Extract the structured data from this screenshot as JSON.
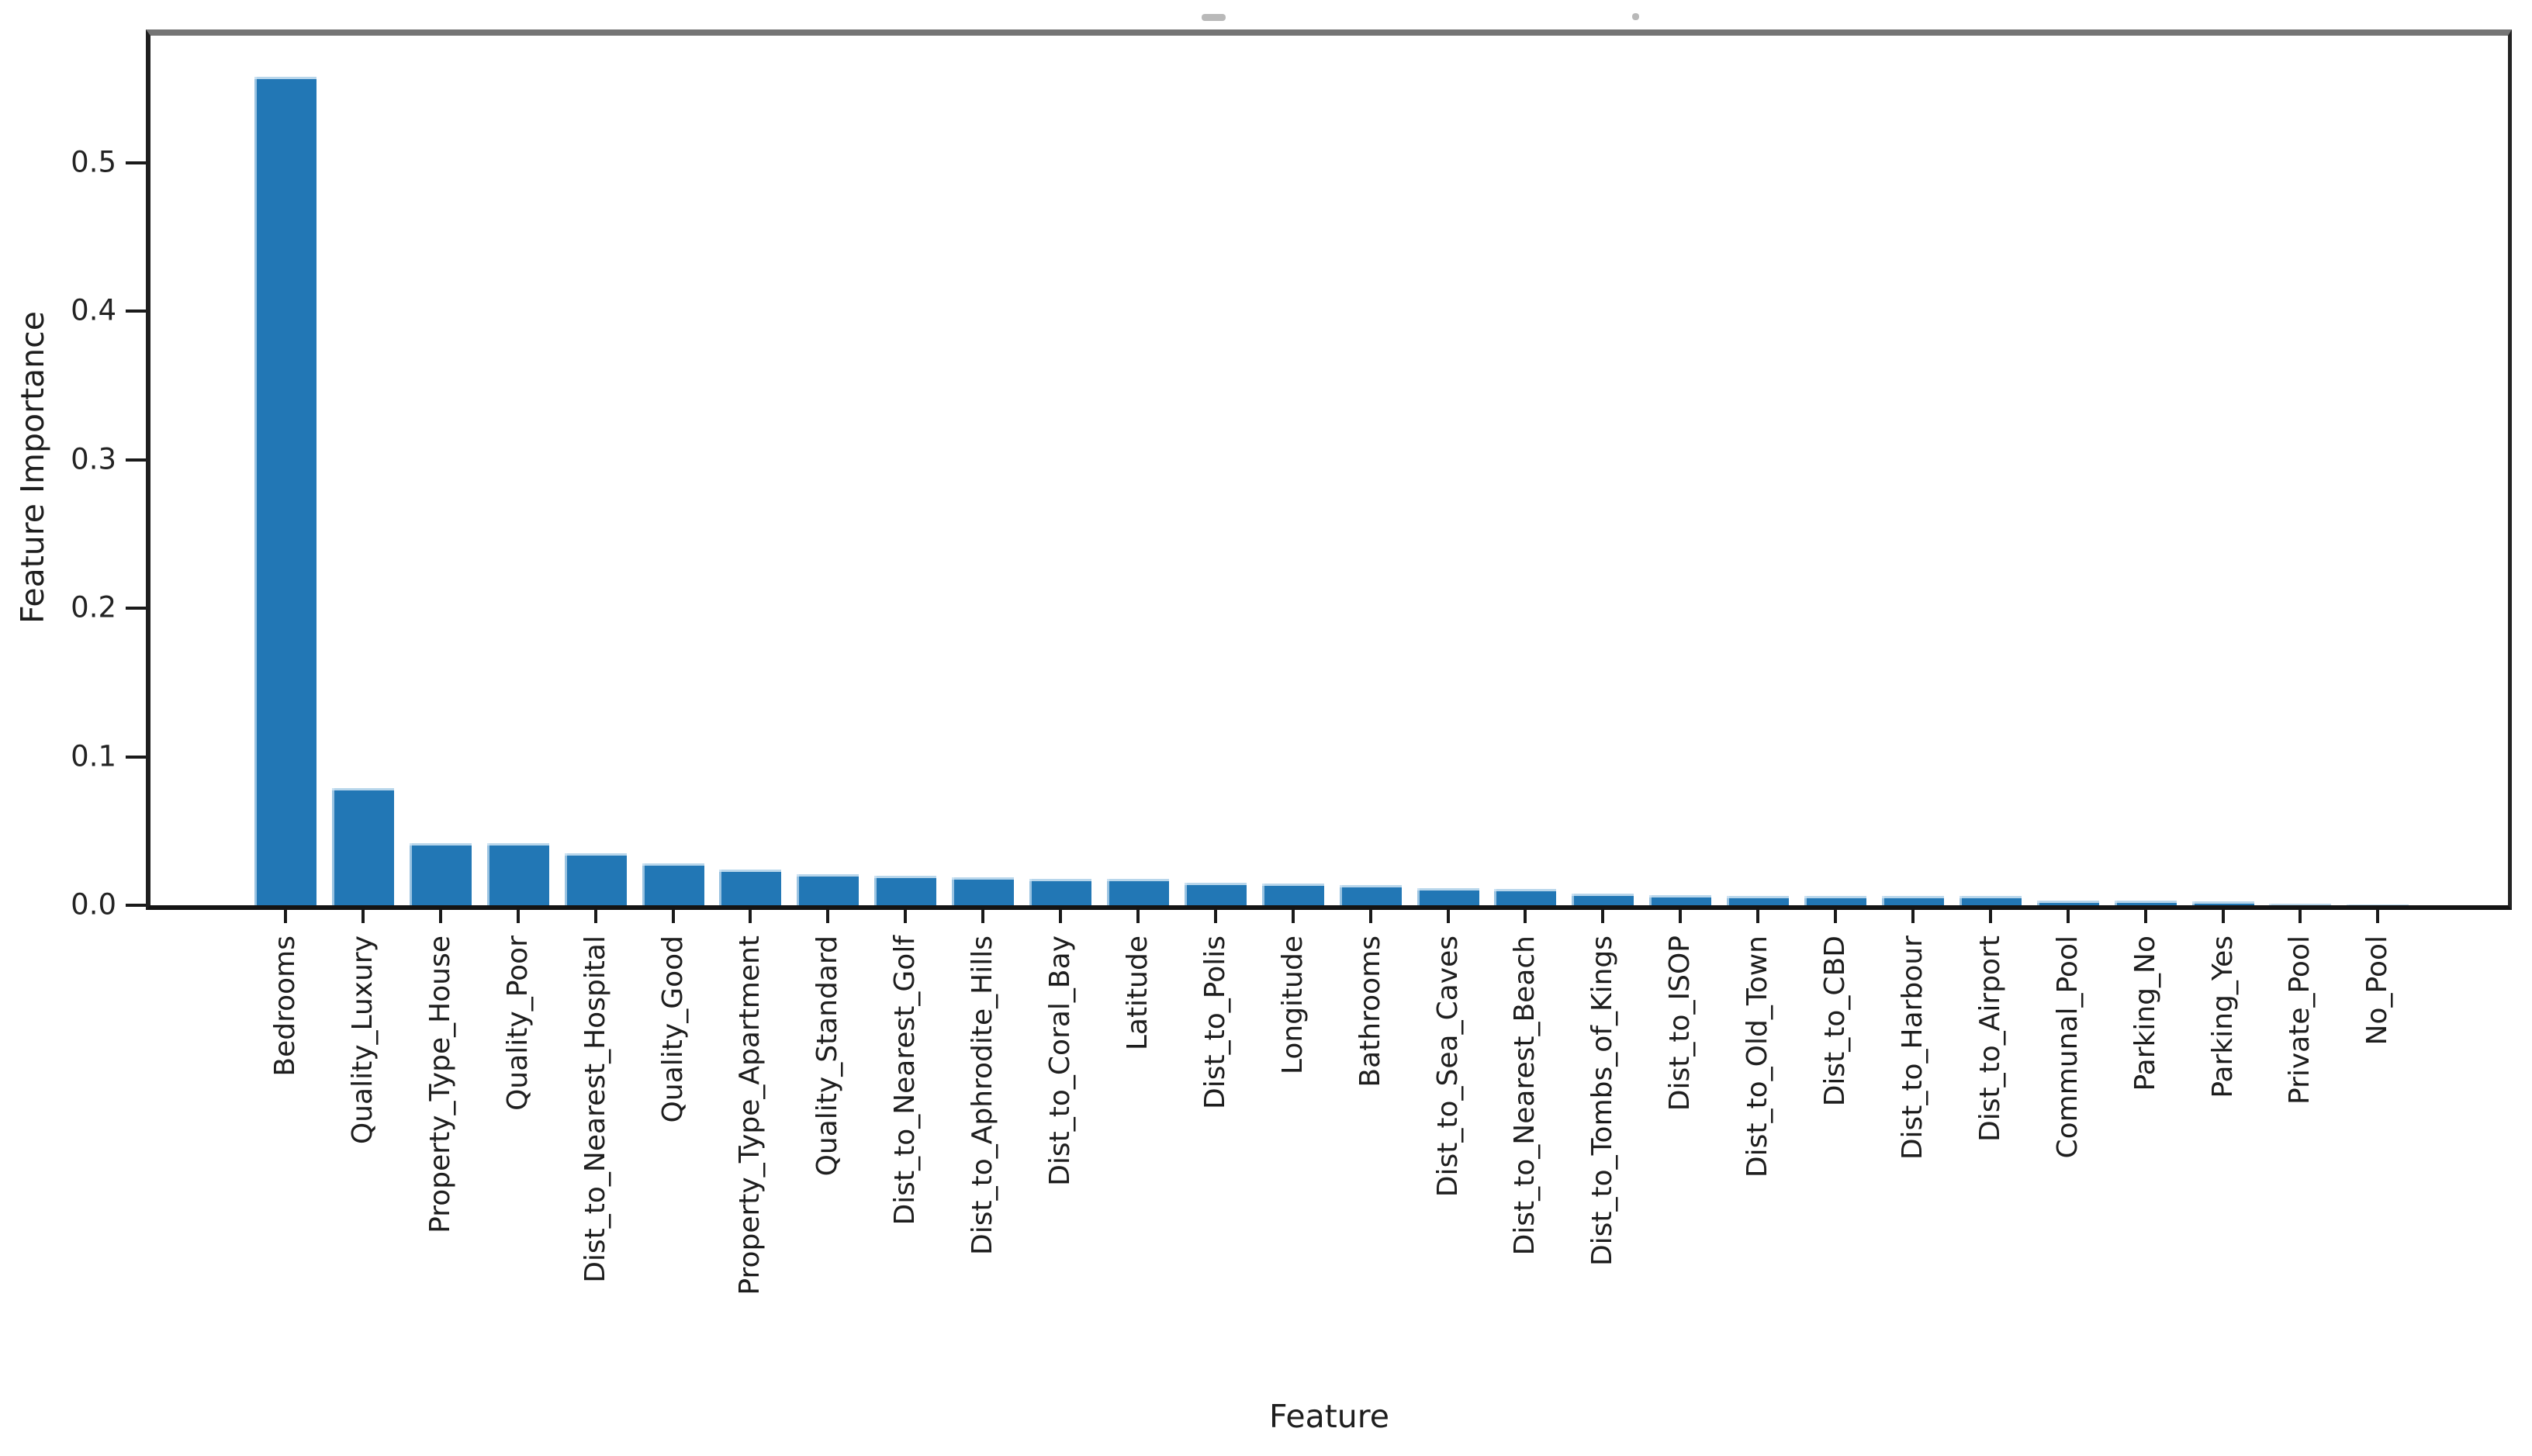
{
  "figure": {
    "background": "#ffffff",
    "spine_color": "#1f1f1f",
    "top_spine_color": "#757575",
    "text_color": "#1e1e1e"
  },
  "chart_data": {
    "type": "bar",
    "title": "",
    "xlabel": "Feature",
    "ylabel": "Feature Importance",
    "bar_color": "#2277b5",
    "grid": false,
    "legend": "none",
    "tick_label_rotation": 90,
    "ylim": [
      0,
      0.5875
    ],
    "yticks": [
      0.0,
      0.1,
      0.2,
      0.3,
      0.4,
      0.5
    ],
    "yticklabels": [
      "0.0",
      "0.1",
      "0.2",
      "0.3",
      "0.4",
      "0.5"
    ],
    "categories": [
      "Bedrooms",
      "Quality_Luxury",
      "Property_Type_House",
      "Quality_Poor",
      "Dist_to_Nearest_Hospital",
      "Quality_Good",
      "Property_Type_Apartment",
      "Quality_Standard",
      "Dist_to_Nearest_Golf",
      "Dist_to_Aphrodite_Hills",
      "Dist_to_Coral_Bay",
      "Latitude",
      "Dist_to_Polis",
      "Longitude",
      "Bathrooms",
      "Dist_to_Sea_Caves",
      "Dist_to_Nearest_Beach",
      "Dist_to_Tombs_of_Kings",
      "Dist_to_ISOP",
      "Dist_to_Old_Town",
      "Dist_to_CBD",
      "Dist_to_Harbour",
      "Dist_to_Airport",
      "Communal_Pool",
      "Parking_No",
      "Parking_Yes",
      "Private_Pool",
      "No_Pool"
    ],
    "values": [
      0.558,
      0.079,
      0.042,
      0.042,
      0.035,
      0.028,
      0.024,
      0.021,
      0.02,
      0.019,
      0.018,
      0.018,
      0.015,
      0.0145,
      0.0135,
      0.0115,
      0.011,
      0.008,
      0.007,
      0.0065,
      0.0065,
      0.0065,
      0.0065,
      0.003,
      0.003,
      0.0028,
      0.001,
      0.0004
    ]
  }
}
